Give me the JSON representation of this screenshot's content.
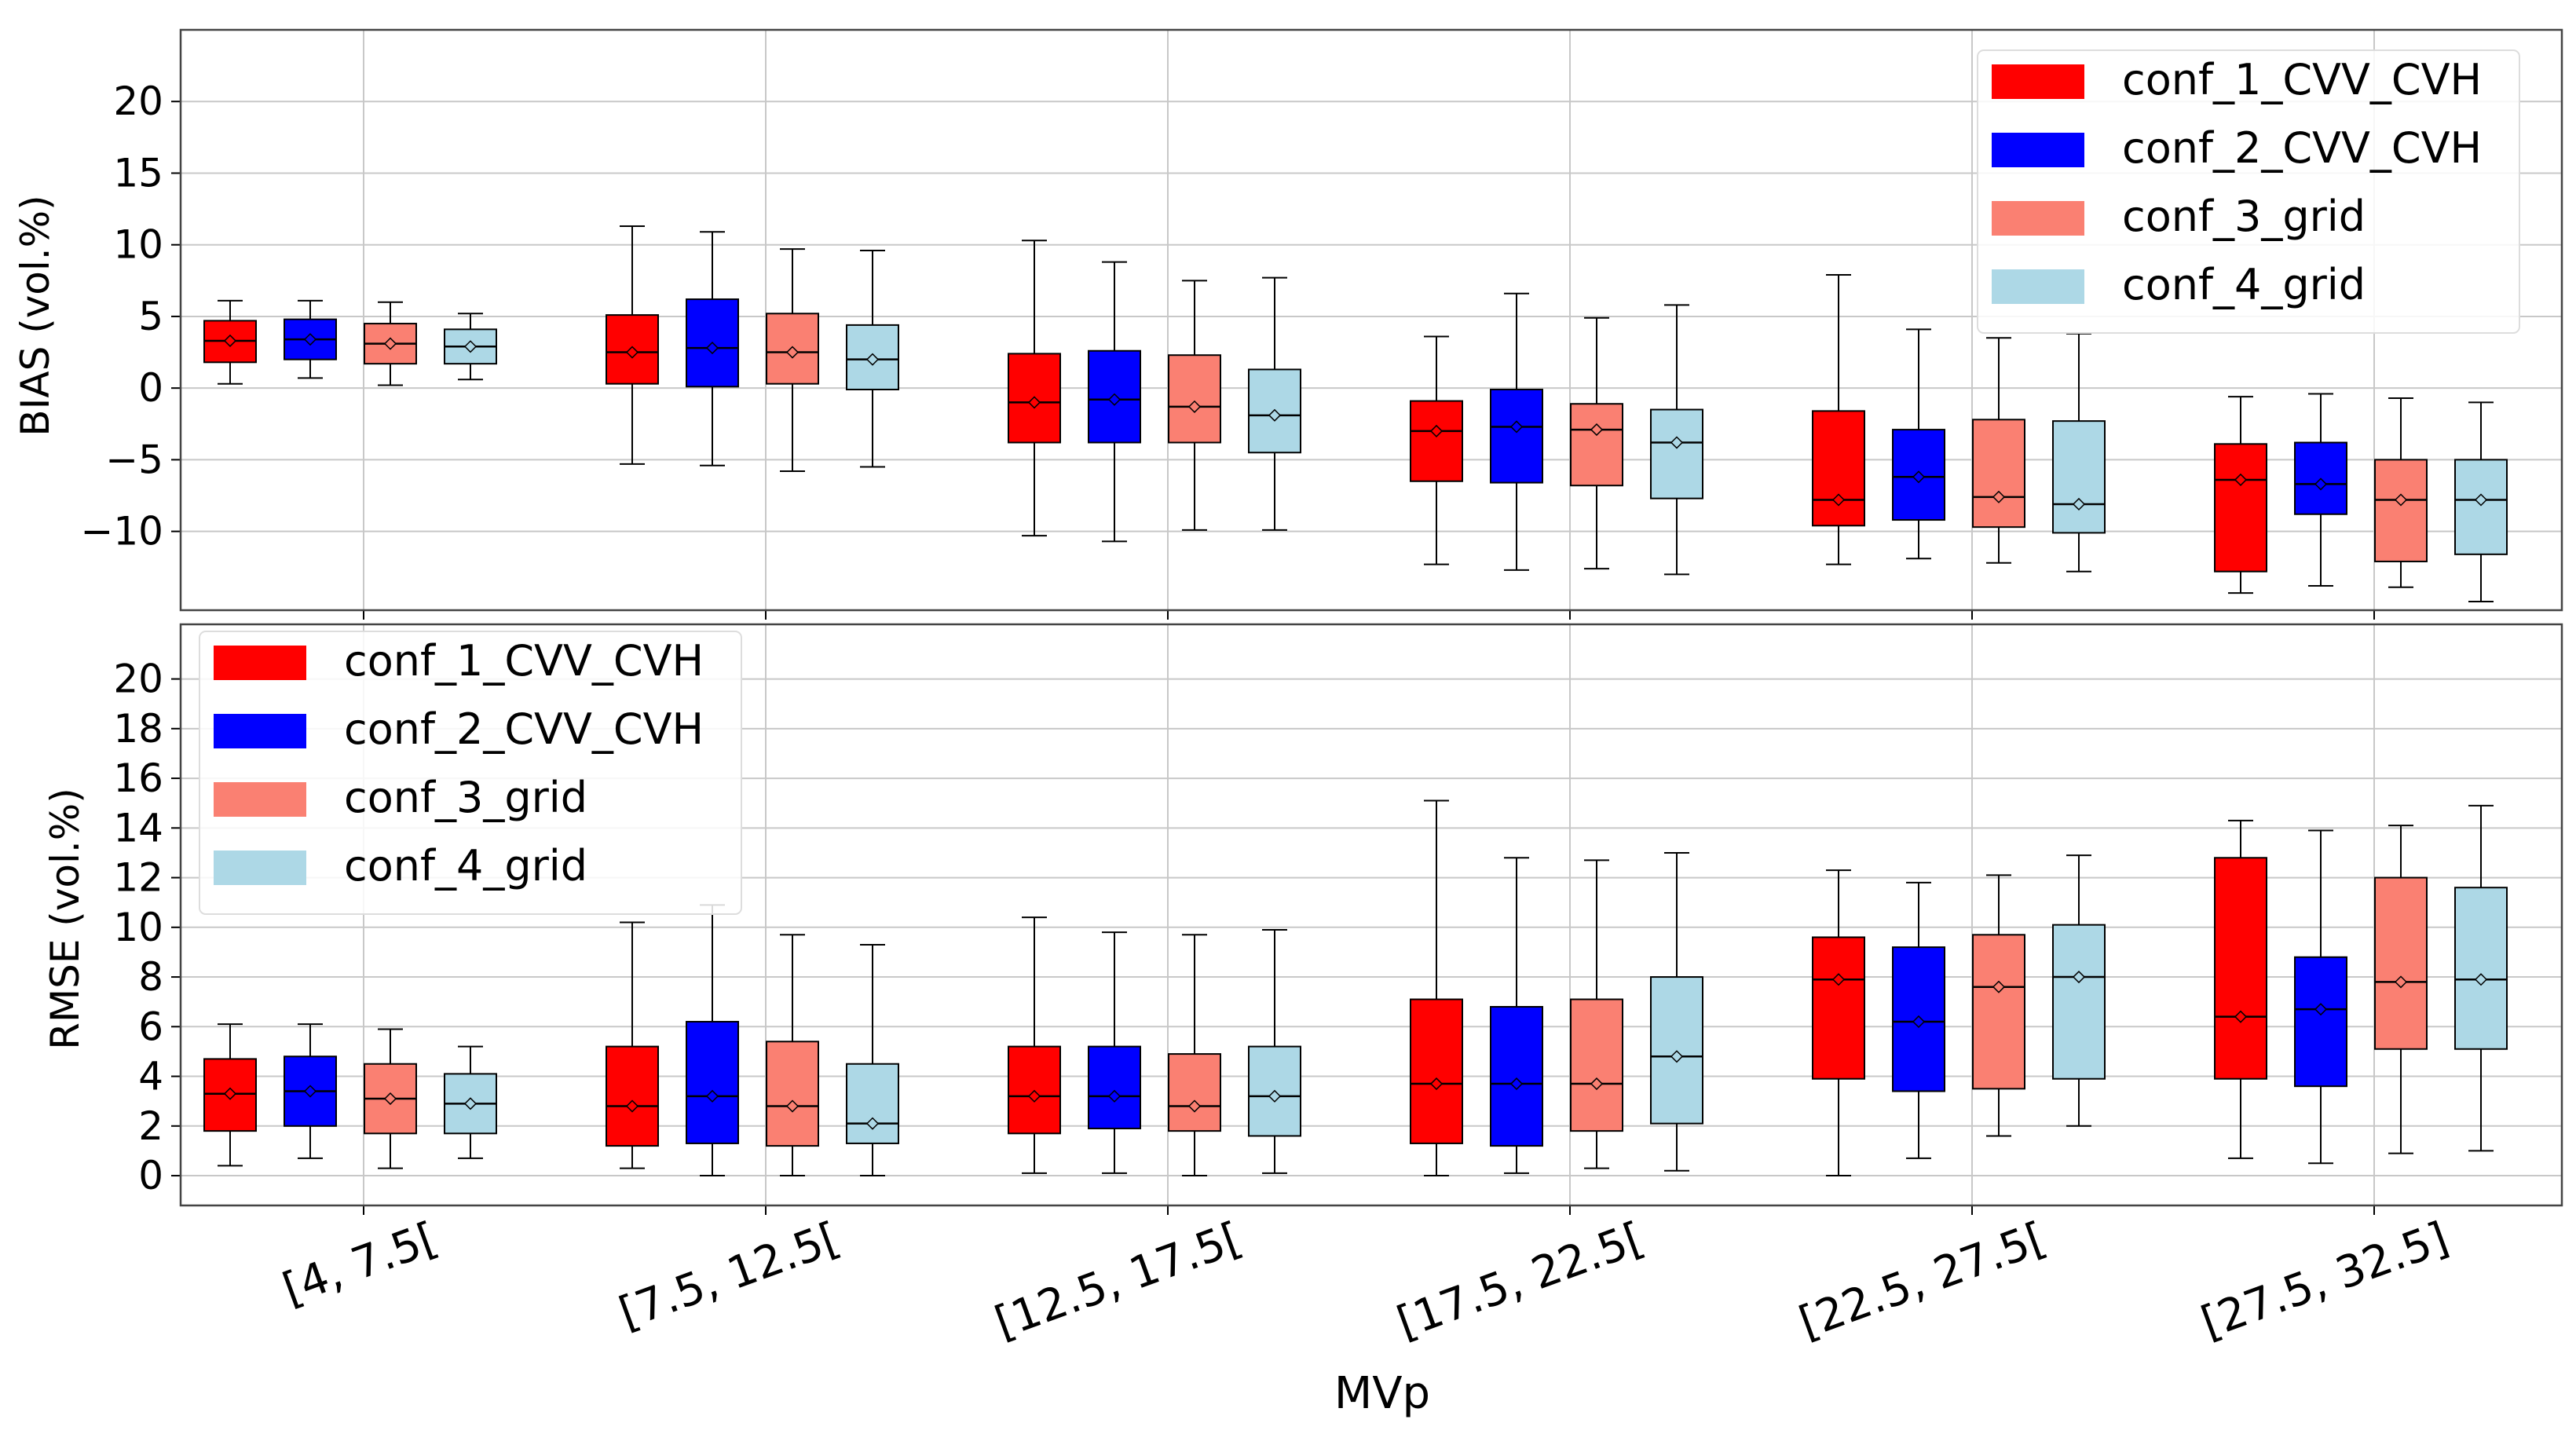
{
  "colors": {
    "conf_1_CVV_CVH": "#ff0000",
    "conf_2_CVV_CVH": "#0000ff",
    "conf_3_grid": "#fa8072",
    "conf_4_grid": "#add8e6",
    "grid": "#c8c8c8",
    "frame": "#444444"
  },
  "chart_data": [
    {
      "type": "box",
      "xlabel": "",
      "ylabel": "BIAS (vol.%)",
      "ylim": [
        -15.5,
        25
      ],
      "yticks": [
        20,
        15,
        10,
        5,
        0,
        -5,
        -10
      ],
      "grid": true,
      "legend_position": "top-right",
      "categories": [
        "[4, 7.5[",
        "[7.5, 12.5[",
        "[12.5, 17.5[",
        "[17.5, 22.5[",
        "[22.5, 27.5[",
        "[27.5, 32.5]"
      ],
      "series": [
        {
          "name": "conf_1_CVV_CVH",
          "boxes": [
            {
              "min": 0.3,
              "q1": 1.8,
              "median": 3.3,
              "q3": 4.7,
              "max": 6.1
            },
            {
              "min": -5.3,
              "q1": 0.3,
              "median": 2.5,
              "q3": 5.1,
              "max": 11.3
            },
            {
              "min": -10.3,
              "q1": -3.8,
              "median": -1.0,
              "q3": 2.4,
              "max": 10.3
            },
            {
              "min": -12.3,
              "q1": -6.5,
              "median": -3.0,
              "q3": -0.9,
              "max": 3.6
            },
            {
              "min": -12.3,
              "q1": -9.6,
              "median": -7.8,
              "q3": -1.6,
              "max": 7.9
            },
            {
              "min": -14.3,
              "q1": -12.8,
              "median": -6.4,
              "q3": -3.9,
              "max": -0.6
            }
          ]
        },
        {
          "name": "conf_2_CVV_CVH",
          "boxes": [
            {
              "min": 0.7,
              "q1": 2.0,
              "median": 3.4,
              "q3": 4.8,
              "max": 6.1
            },
            {
              "min": -5.4,
              "q1": 0.1,
              "median": 2.8,
              "q3": 6.2,
              "max": 10.9
            },
            {
              "min": -10.7,
              "q1": -3.8,
              "median": -0.8,
              "q3": 2.6,
              "max": 8.8
            },
            {
              "min": -12.7,
              "q1": -6.6,
              "median": -2.7,
              "q3": -0.1,
              "max": 6.6
            },
            {
              "min": -11.9,
              "q1": -9.2,
              "median": -6.2,
              "q3": -2.9,
              "max": 4.1
            },
            {
              "min": -13.8,
              "q1": -8.8,
              "median": -6.7,
              "q3": -3.8,
              "max": -0.4
            }
          ]
        },
        {
          "name": "conf_3_grid",
          "boxes": [
            {
              "min": 0.2,
              "q1": 1.7,
              "median": 3.1,
              "q3": 4.5,
              "max": 6.0
            },
            {
              "min": -5.8,
              "q1": 0.3,
              "median": 2.5,
              "q3": 5.2,
              "max": 9.7
            },
            {
              "min": -9.9,
              "q1": -3.8,
              "median": -1.3,
              "q3": 2.3,
              "max": 7.5
            },
            {
              "min": -12.6,
              "q1": -6.8,
              "median": -2.9,
              "q3": -1.1,
              "max": 4.9
            },
            {
              "min": -12.2,
              "q1": -9.7,
              "median": -7.6,
              "q3": -2.2,
              "max": 3.5
            },
            {
              "min": -13.9,
              "q1": -12.1,
              "median": -7.8,
              "q3": -5.0,
              "max": -0.7
            }
          ]
        },
        {
          "name": "conf_4_grid",
          "boxes": [
            {
              "min": 0.6,
              "q1": 1.7,
              "median": 2.9,
              "q3": 4.1,
              "max": 5.2
            },
            {
              "min": -5.5,
              "q1": -0.1,
              "median": 2.0,
              "q3": 4.4,
              "max": 9.6
            },
            {
              "min": -9.9,
              "q1": -4.5,
              "median": -1.9,
              "q3": 1.3,
              "max": 7.7
            },
            {
              "min": -13.0,
              "q1": -7.7,
              "median": -3.8,
              "q3": -1.5,
              "max": 5.8
            },
            {
              "min": -12.8,
              "q1": -10.1,
              "median": -8.1,
              "q3": -2.3,
              "max": 3.8
            },
            {
              "min": -14.9,
              "q1": -11.6,
              "median": -7.8,
              "q3": -5.0,
              "max": -1.0
            }
          ]
        }
      ]
    },
    {
      "type": "box",
      "xlabel": "MVp",
      "ylabel": "RMSE (vol.%)",
      "ylim": [
        -1.2,
        22.2
      ],
      "yticks": [
        20,
        18,
        16,
        14,
        12,
        10,
        8,
        6,
        4,
        2,
        0
      ],
      "grid": true,
      "legend_position": "top-left",
      "categories": [
        "[4, 7.5[",
        "[7.5, 12.5[",
        "[12.5, 17.5[",
        "[17.5, 22.5[",
        "[22.5, 27.5[",
        "[27.5, 32.5]"
      ],
      "series": [
        {
          "name": "conf_1_CVV_CVH",
          "boxes": [
            {
              "min": 0.4,
              "q1": 1.8,
              "median": 3.3,
              "q3": 4.7,
              "max": 6.1
            },
            {
              "min": 0.3,
              "q1": 1.2,
              "median": 2.8,
              "q3": 5.2,
              "max": 10.2
            },
            {
              "min": 0.1,
              "q1": 1.7,
              "median": 3.2,
              "q3": 5.2,
              "max": 10.4
            },
            {
              "min": 0.0,
              "q1": 1.3,
              "median": 3.7,
              "q3": 7.1,
              "max": 15.1
            },
            {
              "min": 0.0,
              "q1": 3.9,
              "median": 7.9,
              "q3": 9.6,
              "max": 12.3
            },
            {
              "min": 0.7,
              "q1": 3.9,
              "median": 6.4,
              "q3": 12.8,
              "max": 14.3
            }
          ]
        },
        {
          "name": "conf_2_CVV_CVH",
          "boxes": [
            {
              "min": 0.7,
              "q1": 2.0,
              "median": 3.4,
              "q3": 4.8,
              "max": 6.1
            },
            {
              "min": 0.0,
              "q1": 1.3,
              "median": 3.2,
              "q3": 6.2,
              "max": 10.9
            },
            {
              "min": 0.1,
              "q1": 1.9,
              "median": 3.2,
              "q3": 5.2,
              "max": 9.8
            },
            {
              "min": 0.1,
              "q1": 1.2,
              "median": 3.7,
              "q3": 6.8,
              "max": 12.8
            },
            {
              "min": 0.7,
              "q1": 3.4,
              "median": 6.2,
              "q3": 9.2,
              "max": 11.8
            },
            {
              "min": 0.5,
              "q1": 3.6,
              "median": 6.7,
              "q3": 8.8,
              "max": 13.9
            }
          ]
        },
        {
          "name": "conf_3_grid",
          "boxes": [
            {
              "min": 0.3,
              "q1": 1.7,
              "median": 3.1,
              "q3": 4.5,
              "max": 5.9
            },
            {
              "min": 0.0,
              "q1": 1.2,
              "median": 2.8,
              "q3": 5.4,
              "max": 9.7
            },
            {
              "min": 0.0,
              "q1": 1.8,
              "median": 2.8,
              "q3": 4.9,
              "max": 9.7
            },
            {
              "min": 0.3,
              "q1": 1.8,
              "median": 3.7,
              "q3": 7.1,
              "max": 12.7
            },
            {
              "min": 1.6,
              "q1": 3.5,
              "median": 7.6,
              "q3": 9.7,
              "max": 12.1
            },
            {
              "min": 0.9,
              "q1": 5.1,
              "median": 7.8,
              "q3": 12.0,
              "max": 14.1
            }
          ]
        },
        {
          "name": "conf_4_grid",
          "boxes": [
            {
              "min": 0.7,
              "q1": 1.7,
              "median": 2.9,
              "q3": 4.1,
              "max": 5.2
            },
            {
              "min": 0.0,
              "q1": 1.3,
              "median": 2.1,
              "q3": 4.5,
              "max": 9.3
            },
            {
              "min": 0.1,
              "q1": 1.6,
              "median": 3.2,
              "q3": 5.2,
              "max": 9.9
            },
            {
              "min": 0.2,
              "q1": 2.1,
              "median": 4.8,
              "q3": 8.0,
              "max": 13.0
            },
            {
              "min": 2.0,
              "q1": 3.9,
              "median": 8.0,
              "q3": 10.1,
              "max": 12.9
            },
            {
              "min": 1.0,
              "q1": 5.1,
              "median": 7.9,
              "q3": 11.6,
              "max": 14.9
            }
          ]
        }
      ]
    }
  ]
}
